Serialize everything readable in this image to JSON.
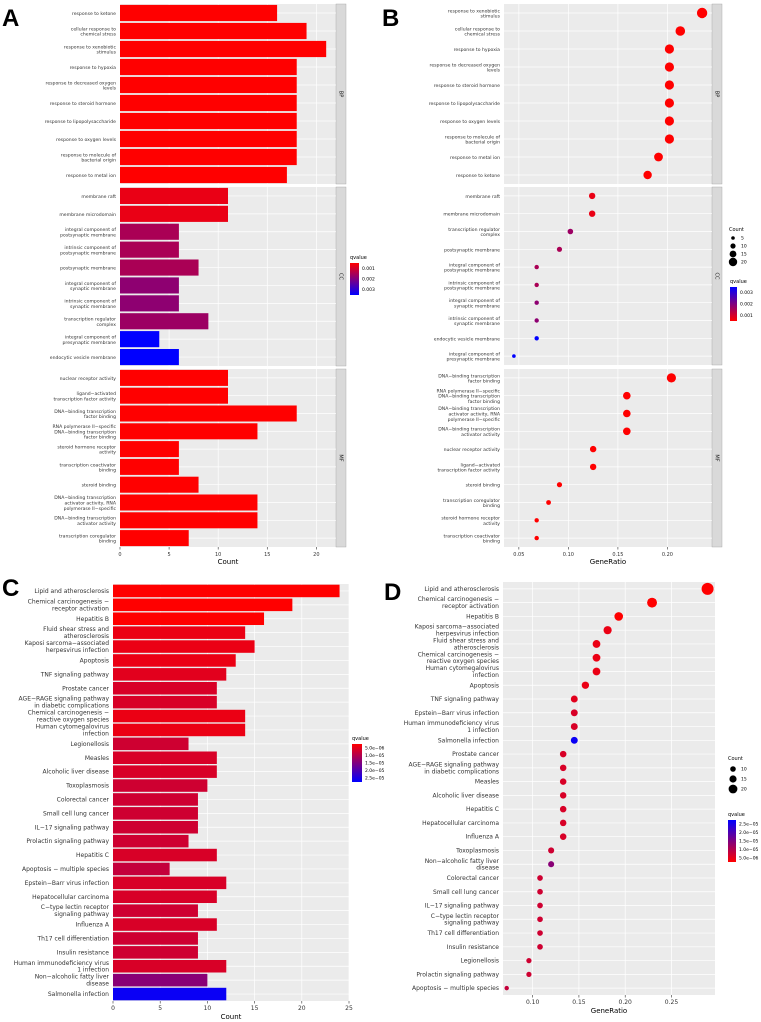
{
  "chart_data": [
    {
      "panel": "A",
      "type": "bar",
      "orientation": "horizontal",
      "xlabel": "Count",
      "xlim": [
        0,
        22
      ],
      "xticks": [
        0,
        5,
        10,
        15,
        20
      ],
      "legend": {
        "title": "qvalue",
        "labels": [
          "0.001",
          "0.002",
          "0.003"
        ],
        "position": "right"
      },
      "facets": [
        {
          "name": "BP",
          "items": [
            {
              "label": "response to ketone",
              "value": 16,
              "q": 0.0
            },
            {
              "label": "cellular response to\nchemical stress",
              "value": 19,
              "q": 0.0
            },
            {
              "label": "response to xenobiotic\nstimulus",
              "value": 21,
              "q": 0.0
            },
            {
              "label": "response to hypoxia",
              "value": 18,
              "q": 0.0
            },
            {
              "label": "response to decreased oxygen\nlevels",
              "value": 18,
              "q": 0.0
            },
            {
              "label": "response to steroid hormone",
              "value": 18,
              "q": 0.0
            },
            {
              "label": "response to lipopolysaccharide",
              "value": 18,
              "q": 0.0
            },
            {
              "label": "response to oxygen levels",
              "value": 18,
              "q": 0.0
            },
            {
              "label": "response to molecule of\nbacterial origin",
              "value": 18,
              "q": 0.0
            },
            {
              "label": "response to metal ion",
              "value": 17,
              "q": 0.0
            }
          ]
        },
        {
          "name": "CC",
          "items": [
            {
              "label": "membrane raft",
              "value": 11,
              "q": 0.0003
            },
            {
              "label": "membrane microdomain",
              "value": 11,
              "q": 0.0003
            },
            {
              "label": "integral component of\npostsynaptic membrane",
              "value": 6,
              "q": 0.0012
            },
            {
              "label": "intrinsic component of\npostsynaptic membrane",
              "value": 6,
              "q": 0.0012
            },
            {
              "label": "postsynaptic membrane",
              "value": 8,
              "q": 0.0012
            },
            {
              "label": "integral component of\nsynaptic membrane",
              "value": 6,
              "q": 0.0016
            },
            {
              "label": "intrinsic component of\nsynaptic membrane",
              "value": 6,
              "q": 0.0016
            },
            {
              "label": "transcription regulator\ncomplex",
              "value": 9,
              "q": 0.0014
            },
            {
              "label": "integral component of\npresynaptic membrane",
              "value": 4,
              "q": 0.0036
            },
            {
              "label": "endocytic vesicle membrane",
              "value": 6,
              "q": 0.0036
            }
          ]
        },
        {
          "name": "MF",
          "items": [
            {
              "label": "nuclear receptor activity",
              "value": 11,
              "q": 0.0
            },
            {
              "label": "ligand−activated\ntranscription factor activity",
              "value": 11,
              "q": 0.0
            },
            {
              "label": "DNA−binding transcription\nfactor binding",
              "value": 18,
              "q": 0.0
            },
            {
              "label": "RNA polymerase II−specific\nDNA−binding transcription\nfactor binding",
              "value": 14,
              "q": 0.0
            },
            {
              "label": "steroid hormone receptor\nactivity",
              "value": 6,
              "q": 0.0
            },
            {
              "label": "transcription coactivator\nbinding",
              "value": 6,
              "q": 0.0
            },
            {
              "label": "steroid binding",
              "value": 8,
              "q": 0.0
            },
            {
              "label": "DNA−binding transcription\nactivator activity, RNA\npolymerase II−specific",
              "value": 14,
              "q": 0.0
            },
            {
              "label": "DNA−binding transcription\nactivator activity",
              "value": 14,
              "q": 0.0
            },
            {
              "label": "transcription coregulator\nbinding",
              "value": 7,
              "q": 0.0
            }
          ]
        }
      ]
    },
    {
      "panel": "B",
      "type": "scatter",
      "xlabel": "GeneRatio",
      "xlim": [
        0.035,
        0.245
      ],
      "xticks": [
        0.05,
        0.1,
        0.15,
        0.2
      ],
      "xtick_labels": [
        "0.05",
        "0.10",
        "0.15",
        "0.20"
      ],
      "legend": {
        "size_title": "Count",
        "size_labels": [
          "5",
          "10",
          "15",
          "20"
        ],
        "color_title": "qvalue",
        "color_labels": [
          "0.003",
          "0.002",
          "0.001"
        ]
      },
      "facets": [
        {
          "name": "BP",
          "items": [
            {
              "label": "response to xenobiotic\nstimulus",
              "x": 0.235,
              "count": 21,
              "q": 0.0
            },
            {
              "label": "cellular response to\nchemical stress",
              "x": 0.213,
              "count": 19,
              "q": 0.0
            },
            {
              "label": "response to hypoxia",
              "x": 0.202,
              "count": 18,
              "q": 0.0
            },
            {
              "label": "response to decreased oxygen\nlevels",
              "x": 0.202,
              "count": 18,
              "q": 0.0
            },
            {
              "label": "response to steroid hormone",
              "x": 0.202,
              "count": 18,
              "q": 0.0
            },
            {
              "label": "response to lipopolysaccharide",
              "x": 0.202,
              "count": 18,
              "q": 0.0
            },
            {
              "label": "response to oxygen levels",
              "x": 0.202,
              "count": 18,
              "q": 0.0
            },
            {
              "label": "response to molecule of\nbacterial origin",
              "x": 0.202,
              "count": 18,
              "q": 0.0
            },
            {
              "label": "response to metal ion",
              "x": 0.191,
              "count": 17,
              "q": 0.0
            },
            {
              "label": "response to ketone",
              "x": 0.18,
              "count": 16,
              "q": 0.0
            }
          ]
        },
        {
          "name": "CC",
          "items": [
            {
              "label": "membrane raft",
              "x": 0.124,
              "count": 11,
              "q": 0.0003
            },
            {
              "label": "membrane microdomain",
              "x": 0.124,
              "count": 11,
              "q": 0.0003
            },
            {
              "label": "transcription regulator\ncomplex",
              "x": 0.102,
              "count": 9,
              "q": 0.0014
            },
            {
              "label": "postsynaptic membrane",
              "x": 0.091,
              "count": 8,
              "q": 0.0012
            },
            {
              "label": "integral component of\npostsynaptic membrane",
              "x": 0.068,
              "count": 6,
              "q": 0.0012
            },
            {
              "label": "intrinsic component of\npostsynaptic membrane",
              "x": 0.068,
              "count": 6,
              "q": 0.0012
            },
            {
              "label": "integral component of\nsynaptic membrane",
              "x": 0.068,
              "count": 6,
              "q": 0.0016
            },
            {
              "label": "intrinsic component of\nsynaptic membrane",
              "x": 0.068,
              "count": 6,
              "q": 0.0016
            },
            {
              "label": "endocytic vesicle membrane",
              "x": 0.068,
              "count": 6,
              "q": 0.0036
            },
            {
              "label": "integral component of\npresynaptic membrane",
              "x": 0.045,
              "count": 4,
              "q": 0.0036
            }
          ]
        },
        {
          "name": "MF",
          "items": [
            {
              "label": "DNA−binding transcription\nfactor binding",
              "x": 0.204,
              "count": 18,
              "q": 0.0
            },
            {
              "label": "RNA polymerase II−specific\nDNA−binding transcription\nfactor binding",
              "x": 0.159,
              "count": 14,
              "q": 0.0
            },
            {
              "label": "DNA−binding transcription\nactivator activity, RNA\npolymerase II−specific",
              "x": 0.159,
              "count": 14,
              "q": 0.0
            },
            {
              "label": "DNA−binding transcription\nactivator activity",
              "x": 0.159,
              "count": 14,
              "q": 0.0
            },
            {
              "label": "nuclear receptor activity",
              "x": 0.125,
              "count": 11,
              "q": 0.0
            },
            {
              "label": "ligand−activated\ntranscription factor activity",
              "x": 0.125,
              "count": 11,
              "q": 0.0
            },
            {
              "label": "steroid binding",
              "x": 0.091,
              "count": 8,
              "q": 0.0
            },
            {
              "label": "transcription coregulator\nbinding",
              "x": 0.08,
              "count": 7,
              "q": 0.0
            },
            {
              "label": "steroid hormone receptor\nactivity",
              "x": 0.068,
              "count": 6,
              "q": 0.0
            },
            {
              "label": "transcription coactivator\nbinding",
              "x": 0.068,
              "count": 6,
              "q": 0.0
            }
          ]
        }
      ]
    },
    {
      "panel": "C",
      "type": "bar",
      "orientation": "horizontal",
      "xlabel": "Count",
      "xlim": [
        0,
        25
      ],
      "xticks": [
        0,
        5,
        10,
        15,
        20,
        25
      ],
      "legend": {
        "title": "qvalue",
        "labels": [
          "5.0e−06",
          "1.0e−05",
          "1.5e−05",
          "2.0e−05",
          "2.5e−05"
        ],
        "position": "right"
      },
      "items": [
        {
          "label": "Lipid and atherosclerosis",
          "value": 24,
          "q": 0.0
        },
        {
          "label": "Chemical carcinogenesis −\nreceptor activation",
          "value": 19,
          "q": 0.0
        },
        {
          "label": "Hepatitis B",
          "value": 16,
          "q": 0.0
        },
        {
          "label": "Fluid shear stress and\natherosclerosis",
          "value": 14,
          "q": 2e-06
        },
        {
          "label": "Kaposi sarcoma−associated\nherpesvirus infection",
          "value": 15,
          "q": 2e-06
        },
        {
          "label": "Apoptosis",
          "value": 13,
          "q": 2e-06
        },
        {
          "label": "TNF signaling pathway",
          "value": 12,
          "q": 3e-06
        },
        {
          "label": "Prostate cancer",
          "value": 11,
          "q": 4e-06
        },
        {
          "label": "AGE−RAGE signaling pathway\nin diabetic complications",
          "value": 11,
          "q": 4e-06
        },
        {
          "label": "Chemical carcinogenesis −\nreactive oxygen species",
          "value": 14,
          "q": 2e-06
        },
        {
          "label": "Human cytomegalovirus\ninfection",
          "value": 14,
          "q": 2e-06
        },
        {
          "label": "Legionellosis",
          "value": 8,
          "q": 5e-06
        },
        {
          "label": "Measles",
          "value": 11,
          "q": 4e-06
        },
        {
          "label": "Alcoholic liver disease",
          "value": 11,
          "q": 4e-06
        },
        {
          "label": "Toxoplasmosis",
          "value": 10,
          "q": 5e-06
        },
        {
          "label": "Colorectal cancer",
          "value": 9,
          "q": 5e-06
        },
        {
          "label": "Small cell lung cancer",
          "value": 9,
          "q": 5e-06
        },
        {
          "label": "IL−17 signaling pathway",
          "value": 9,
          "q": 5e-06
        },
        {
          "label": "Prolactin signaling pathway",
          "value": 8,
          "q": 5e-06
        },
        {
          "label": "Hepatitis C",
          "value": 11,
          "q": 4e-06
        },
        {
          "label": "Apoptosis − multiple species",
          "value": 6,
          "q": 6e-06
        },
        {
          "label": "Epstein−Barr virus infection",
          "value": 12,
          "q": 4e-06
        },
        {
          "label": "Hepatocellular carcinoma",
          "value": 11,
          "q": 4e-06
        },
        {
          "label": "C−type lectin receptor\nsignaling pathway",
          "value": 9,
          "q": 5e-06
        },
        {
          "label": "Influenza A",
          "value": 11,
          "q": 4e-06
        },
        {
          "label": "Th17 cell differentiation",
          "value": 9,
          "q": 5e-06
        },
        {
          "label": "Insulin resistance",
          "value": 9,
          "q": 5e-06
        },
        {
          "label": "Human immunodeficiency virus\n1 infection",
          "value": 12,
          "q": 4e-06
        },
        {
          "label": "Non−alcoholic fatty liver\ndisease",
          "value": 10,
          "q": 1.2e-05
        },
        {
          "label": "Salmonella infection",
          "value": 12,
          "q": 2.5e-05
        }
      ]
    },
    {
      "panel": "D",
      "type": "scatter",
      "xlabel": "GeneRatio",
      "xlim": [
        0.068,
        0.297
      ],
      "xticks": [
        0.1,
        0.15,
        0.2,
        0.25
      ],
      "xtick_labels": [
        "0.10",
        "0.15",
        "0.20",
        "0.25"
      ],
      "legend": {
        "size_title": "Count",
        "size_labels": [
          "10",
          "15",
          "20"
        ],
        "color_title": "qvalue",
        "color_labels": [
          "2.5e−05",
          "2.0e−05",
          "1.5e−05",
          "1.0e−05",
          "5.0e−06"
        ]
      },
      "items": [
        {
          "label": "Lipid and atherosclerosis",
          "x": 0.289,
          "count": 24,
          "q": 0.0
        },
        {
          "label": "Chemical carcinogenesis −\nreceptor activation",
          "x": 0.229,
          "count": 19,
          "q": 0.0
        },
        {
          "label": "Hepatitis B",
          "x": 0.193,
          "count": 16,
          "q": 0.0
        },
        {
          "label": "Kaposi sarcoma−associated\nherpesvirus infection",
          "x": 0.181,
          "count": 15,
          "q": 2e-06
        },
        {
          "label": "Fluid shear stress and\natherosclerosis",
          "x": 0.169,
          "count": 14,
          "q": 2e-06
        },
        {
          "label": "Chemical carcinogenesis −\nreactive oxygen species",
          "x": 0.169,
          "count": 14,
          "q": 2e-06
        },
        {
          "label": "Human cytomegalovirus\ninfection",
          "x": 0.169,
          "count": 14,
          "q": 2e-06
        },
        {
          "label": "Apoptosis",
          "x": 0.157,
          "count": 13,
          "q": 2e-06
        },
        {
          "label": "TNF signaling pathway",
          "x": 0.145,
          "count": 12,
          "q": 3e-06
        },
        {
          "label": "Epstein−Barr virus infection",
          "x": 0.145,
          "count": 12,
          "q": 4e-06
        },
        {
          "label": "Human immunodeficiency virus\n1 infection",
          "x": 0.145,
          "count": 12,
          "q": 4e-06
        },
        {
          "label": "Salmonella infection",
          "x": 0.145,
          "count": 12,
          "q": 2.5e-05
        },
        {
          "label": "Prostate cancer",
          "x": 0.133,
          "count": 11,
          "q": 4e-06
        },
        {
          "label": "AGE−RAGE signaling pathway\nin diabetic complications",
          "x": 0.133,
          "count": 11,
          "q": 4e-06
        },
        {
          "label": "Measles",
          "x": 0.133,
          "count": 11,
          "q": 4e-06
        },
        {
          "label": "Alcoholic liver disease",
          "x": 0.133,
          "count": 11,
          "q": 4e-06
        },
        {
          "label": "Hepatitis C",
          "x": 0.133,
          "count": 11,
          "q": 4e-06
        },
        {
          "label": "Hepatocellular carcinoma",
          "x": 0.133,
          "count": 11,
          "q": 4e-06
        },
        {
          "label": "Influenza A",
          "x": 0.133,
          "count": 11,
          "q": 4e-06
        },
        {
          "label": "Toxoplasmosis",
          "x": 0.12,
          "count": 10,
          "q": 5e-06
        },
        {
          "label": "Non−alcoholic fatty liver\ndisease",
          "x": 0.12,
          "count": 10,
          "q": 1.2e-05
        },
        {
          "label": "Colorectal cancer",
          "x": 0.108,
          "count": 9,
          "q": 5e-06
        },
        {
          "label": "Small cell lung cancer",
          "x": 0.108,
          "count": 9,
          "q": 5e-06
        },
        {
          "label": "IL−17 signaling pathway",
          "x": 0.108,
          "count": 9,
          "q": 5e-06
        },
        {
          "label": "C−type lectin receptor\nsignaling pathway",
          "x": 0.108,
          "count": 9,
          "q": 5e-06
        },
        {
          "label": "Th17 cell differentiation",
          "x": 0.108,
          "count": 9,
          "q": 5e-06
        },
        {
          "label": "Insulin resistance",
          "x": 0.108,
          "count": 9,
          "q": 5e-06
        },
        {
          "label": "Legionellosis",
          "x": 0.096,
          "count": 8,
          "q": 5e-06
        },
        {
          "label": "Prolactin signaling pathway",
          "x": 0.096,
          "count": 8,
          "q": 5e-06
        },
        {
          "label": "Apoptosis − multiple species",
          "x": 0.072,
          "count": 6,
          "q": 6e-06
        }
      ]
    }
  ]
}
